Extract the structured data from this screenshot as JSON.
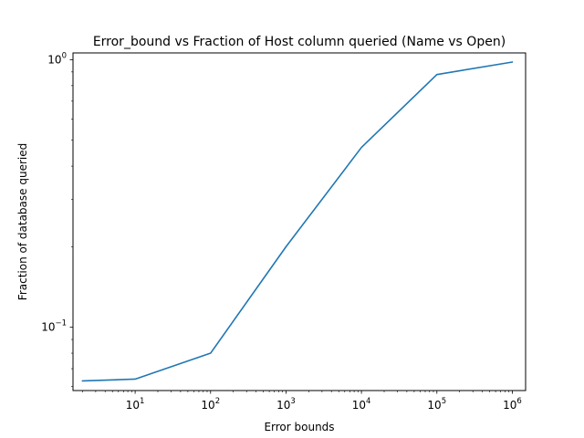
{
  "chart_data": {
    "type": "line",
    "title": "Error_bound vs Fraction of Host column queried (Name vs Open)",
    "xlabel": "Error bounds",
    "ylabel": "Fraction of database queried",
    "xscale": "log",
    "yscale": "log",
    "xlim": [
      1.5,
      1500000
    ],
    "ylim": [
      0.058,
      1.06
    ],
    "grid": false,
    "series": [
      {
        "color": "#1f77b4",
        "x": [
          2,
          10,
          100,
          1000,
          10000,
          100000,
          1000000
        ],
        "y": [
          0.063,
          0.064,
          0.08,
          0.2,
          0.47,
          0.88,
          0.98
        ]
      }
    ],
    "x_ticks": [
      {
        "value": 10,
        "base": "10",
        "exp": "1"
      },
      {
        "value": 100,
        "base": "10",
        "exp": "2"
      },
      {
        "value": 1000,
        "base": "10",
        "exp": "3"
      },
      {
        "value": 10000,
        "base": "10",
        "exp": "4"
      },
      {
        "value": 100000,
        "base": "10",
        "exp": "5"
      },
      {
        "value": 1000000,
        "base": "10",
        "exp": "6"
      }
    ],
    "y_ticks": [
      {
        "value": 0.1,
        "base": "10",
        "exp": "−1"
      },
      {
        "value": 1,
        "base": "10",
        "exp": "0"
      }
    ]
  }
}
